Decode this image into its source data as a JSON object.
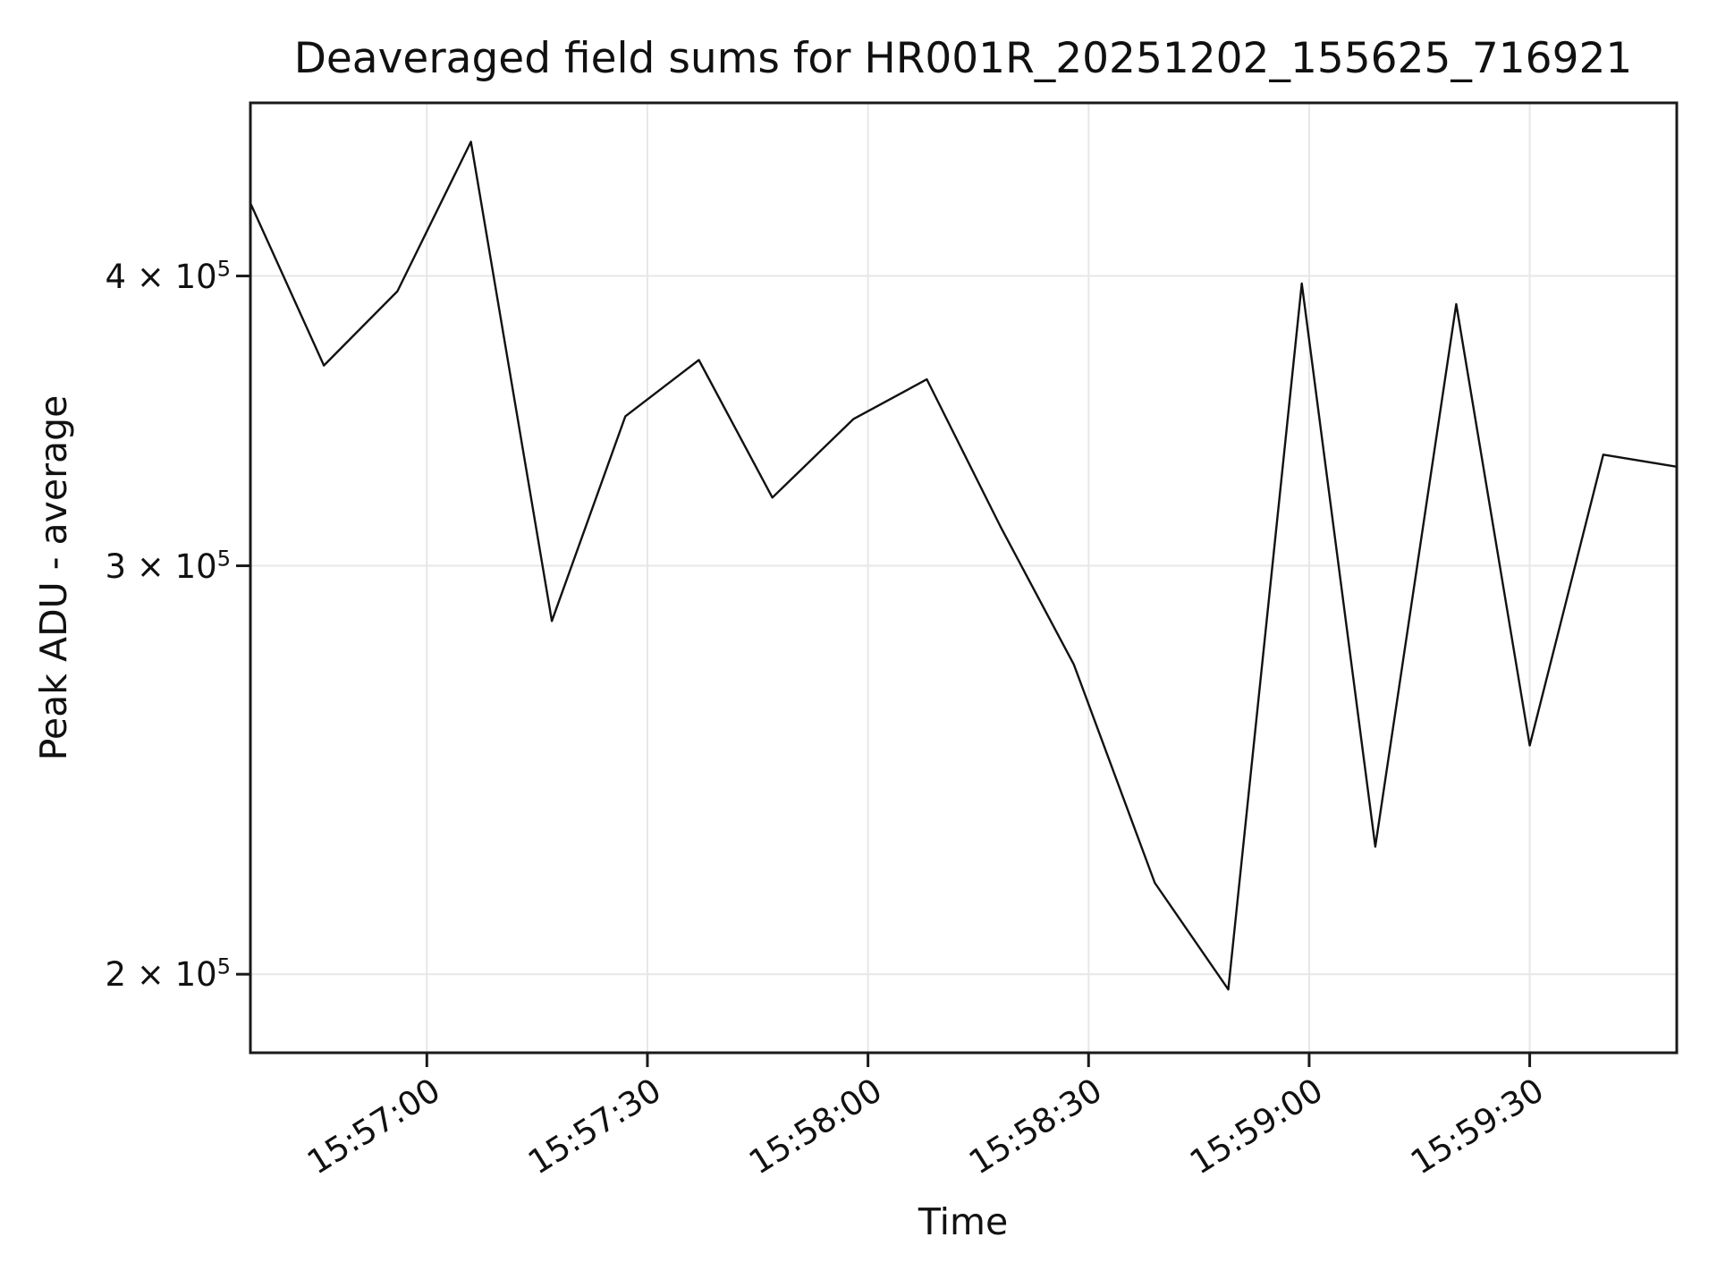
{
  "chart_data": {
    "type": "line",
    "title": "Deaveraged field sums for HR001R_20251202_155625_716921",
    "xlabel": "Time",
    "ylabel": "Peak ADU - average",
    "yscale": "log",
    "grid": true,
    "legend": "none",
    "x_tick_rotation": 32,
    "xlim": [
      "15:56:36",
      "15:59:50"
    ],
    "ylim": [
      185000,
      475000
    ],
    "x": [
      "15:56:36",
      "15:56:46",
      "15:56:56",
      "15:57:06",
      "15:57:17",
      "15:57:27",
      "15:57:37",
      "15:57:47",
      "15:57:58",
      "15:58:08",
      "15:58:18",
      "15:58:28",
      "15:58:39",
      "15:58:49",
      "15:58:59",
      "15:59:09",
      "15:59:20",
      "15:59:30",
      "15:59:40",
      "15:59:50"
    ],
    "values": [
      430000,
      366000,
      394000,
      457000,
      284000,
      348000,
      368000,
      321000,
      347000,
      361000,
      312000,
      272000,
      219000,
      197000,
      397000,
      227000,
      389000,
      251000,
      335000,
      331000
    ],
    "xticks": [
      "15:57:00",
      "15:57:30",
      "15:58:00",
      "15:58:30",
      "15:59:00",
      "15:59:30"
    ],
    "yticks": [
      {
        "value": 200000,
        "base": "2 × 10",
        "exp": "5"
      },
      {
        "value": 300000,
        "base": "3 × 10",
        "exp": "5"
      },
      {
        "value": 400000,
        "base": "4 × 10",
        "exp": "5"
      }
    ],
    "style": {
      "line_color": "#111111",
      "grid_color": "#e7e7e7",
      "spine_color": "#1a1a1a",
      "text_color": "#111111",
      "background": "#ffffff"
    }
  }
}
